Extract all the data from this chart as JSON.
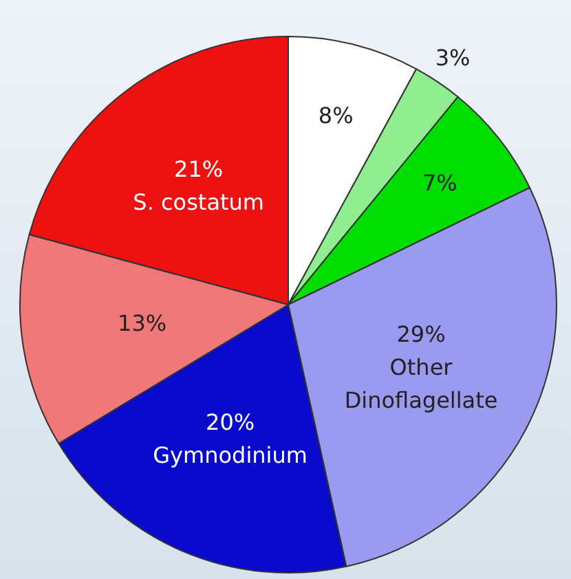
{
  "chart_data": {
    "type": "pie",
    "categories": [
      null,
      null,
      null,
      "Other Dinoflagellate",
      "Gymnodinium",
      null,
      "S. costatum"
    ],
    "values": [
      8,
      3,
      7,
      29,
      20,
      13,
      21
    ],
    "value_labels": [
      "8%",
      "3%",
      "7%",
      "29%",
      "20%",
      "13%",
      "21%"
    ],
    "colors": [
      "#ffffff",
      "#90ee90",
      "#00dd00",
      "#9a9af0",
      "#0a0acc",
      "#f07878",
      "#ee1111"
    ]
  }
}
